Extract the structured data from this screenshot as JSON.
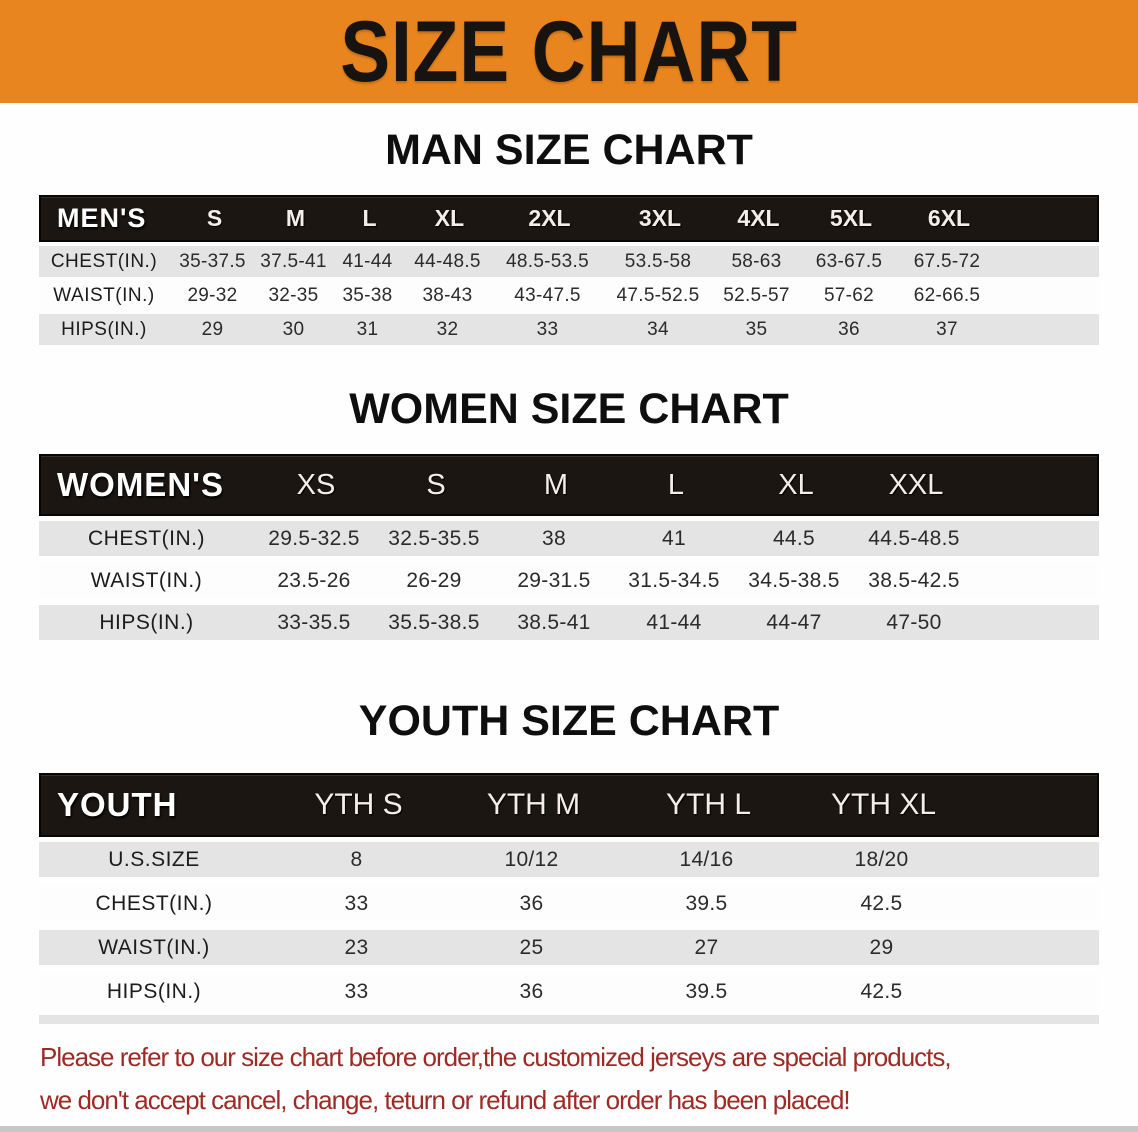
{
  "banner": {
    "title": "SIZE CHART"
  },
  "colors": {
    "banner_bg": "#e8851e",
    "banner_text": "#161310",
    "bar_bg": "#1b1612",
    "row_alt_bg": "#e4e4e4",
    "note_red": "#9e2a26",
    "bottom_strip": "#c7c7c7"
  },
  "men": {
    "heading": "MAN SIZE CHART",
    "group_label": "MEN'S",
    "sizes": [
      "S",
      "M",
      "L",
      "XL",
      "2XL",
      "3XL",
      "4XL",
      "5XL",
      "6XL"
    ],
    "rows": [
      {
        "label": "CHEST(IN.)",
        "values": [
          "35-37.5",
          "37.5-41",
          "41-44",
          "44-48.5",
          "48.5-53.5",
          "53.5-58",
          "58-63",
          "63-67.5",
          "67.5-72"
        ]
      },
      {
        "label": "WAIST(IN.)",
        "values": [
          "29-32",
          "32-35",
          "35-38",
          "38-43",
          "43-47.5",
          "47.5-52.5",
          "52.5-57",
          "57-62",
          "62-66.5"
        ]
      },
      {
        "label": "HIPS(IN.)",
        "values": [
          "29",
          "30",
          "31",
          "32",
          "33",
          "34",
          "35",
          "36",
          "37"
        ]
      }
    ]
  },
  "women": {
    "heading": "WOMEN SIZE CHART",
    "group_label": "WOMEN'S",
    "sizes": [
      "XS",
      "S",
      "M",
      "L",
      "XL",
      "XXL"
    ],
    "rows": [
      {
        "label": "CHEST(IN.)",
        "values": [
          "29.5-32.5",
          "32.5-35.5",
          "38",
          "41",
          "44.5",
          "44.5-48.5"
        ]
      },
      {
        "label": "WAIST(IN.)",
        "values": [
          "23.5-26",
          "26-29",
          "29-31.5",
          "31.5-34.5",
          "34.5-38.5",
          "38.5-42.5"
        ]
      },
      {
        "label": "HIPS(IN.)",
        "values": [
          "33-35.5",
          "35.5-38.5",
          "38.5-41",
          "41-44",
          "44-47",
          "47-50"
        ]
      }
    ]
  },
  "youth": {
    "heading": "YOUTH SIZE CHART",
    "group_label": "YOUTH",
    "sizes": [
      "YTH S",
      "YTH M",
      "YTH L",
      "YTH XL"
    ],
    "rows": [
      {
        "label": "U.S.SIZE",
        "values": [
          "8",
          "10/12",
          "14/16",
          "18/20"
        ]
      },
      {
        "label": "CHEST(IN.)",
        "values": [
          "33",
          "36",
          "39.5",
          "42.5"
        ]
      },
      {
        "label": "WAIST(IN.)",
        "values": [
          "23",
          "25",
          "27",
          "29"
        ]
      },
      {
        "label": "HIPS(IN.)",
        "values": [
          "33",
          "36",
          "39.5",
          "42.5"
        ]
      }
    ]
  },
  "note": {
    "line1": "Please refer to our size chart before order,the customized jerseys are special products,",
    "line2": "we don't accept cancel, change, teturn or refund after order has been placed!"
  }
}
